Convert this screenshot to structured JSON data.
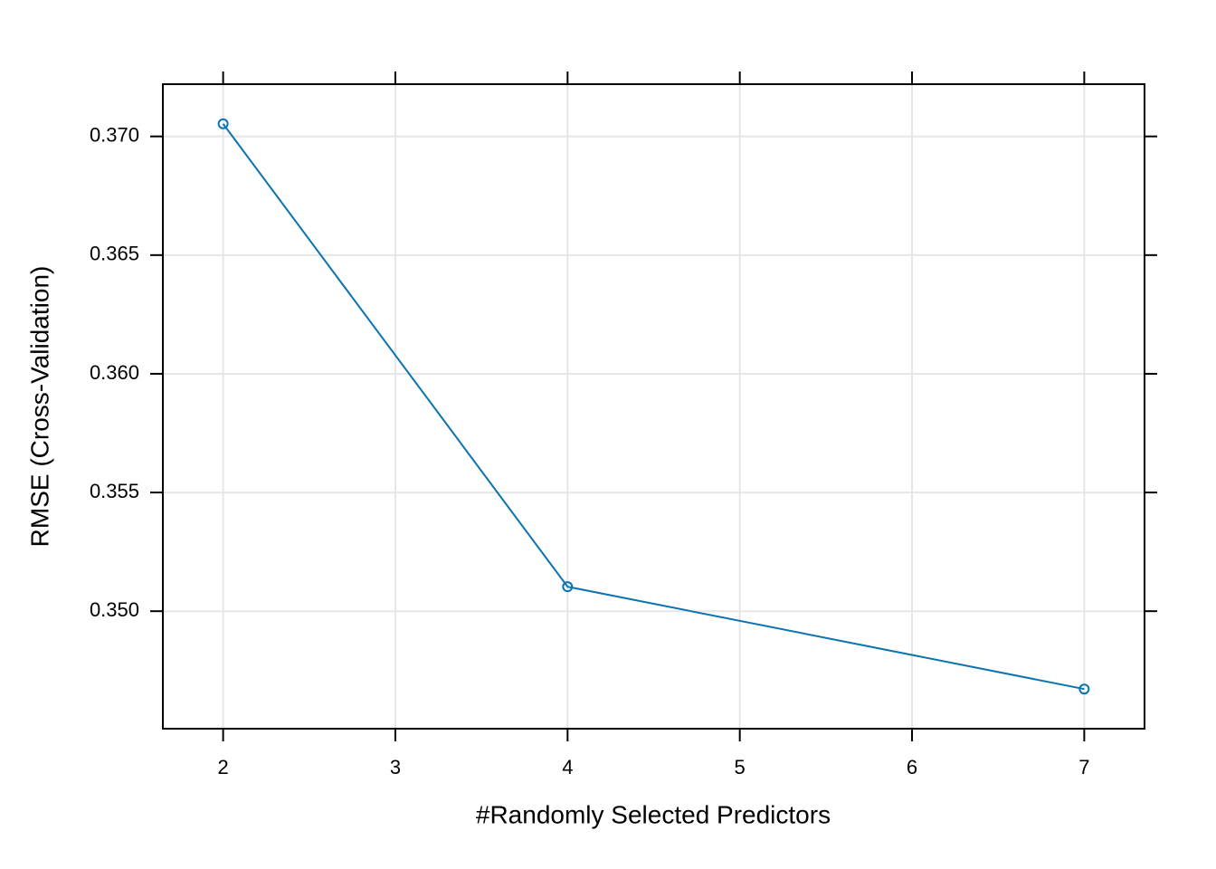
{
  "chart_data": {
    "type": "line",
    "x_label": "#Randomly Selected Predictors",
    "y_label": "RMSE (Cross-Validation)",
    "x": [
      2,
      4,
      7
    ],
    "series": [
      {
        "name": "RMSE",
        "color": "#0a73b0",
        "values": [
          0.37053,
          0.35103,
          0.34672
        ]
      }
    ],
    "xlim": [
      1.65,
      7.35
    ],
    "ylim": [
      0.34505,
      0.3722
    ],
    "xticks": [
      2,
      3,
      4,
      5,
      6,
      7
    ],
    "yticks": [
      {
        "value": 0.35,
        "label": "0.350"
      },
      {
        "value": 0.355,
        "label": "0.355"
      },
      {
        "value": 0.36,
        "label": "0.360"
      },
      {
        "value": 0.365,
        "label": "0.365"
      },
      {
        "value": 0.37,
        "label": "0.370"
      }
    ],
    "grid": true,
    "markers": true
  }
}
